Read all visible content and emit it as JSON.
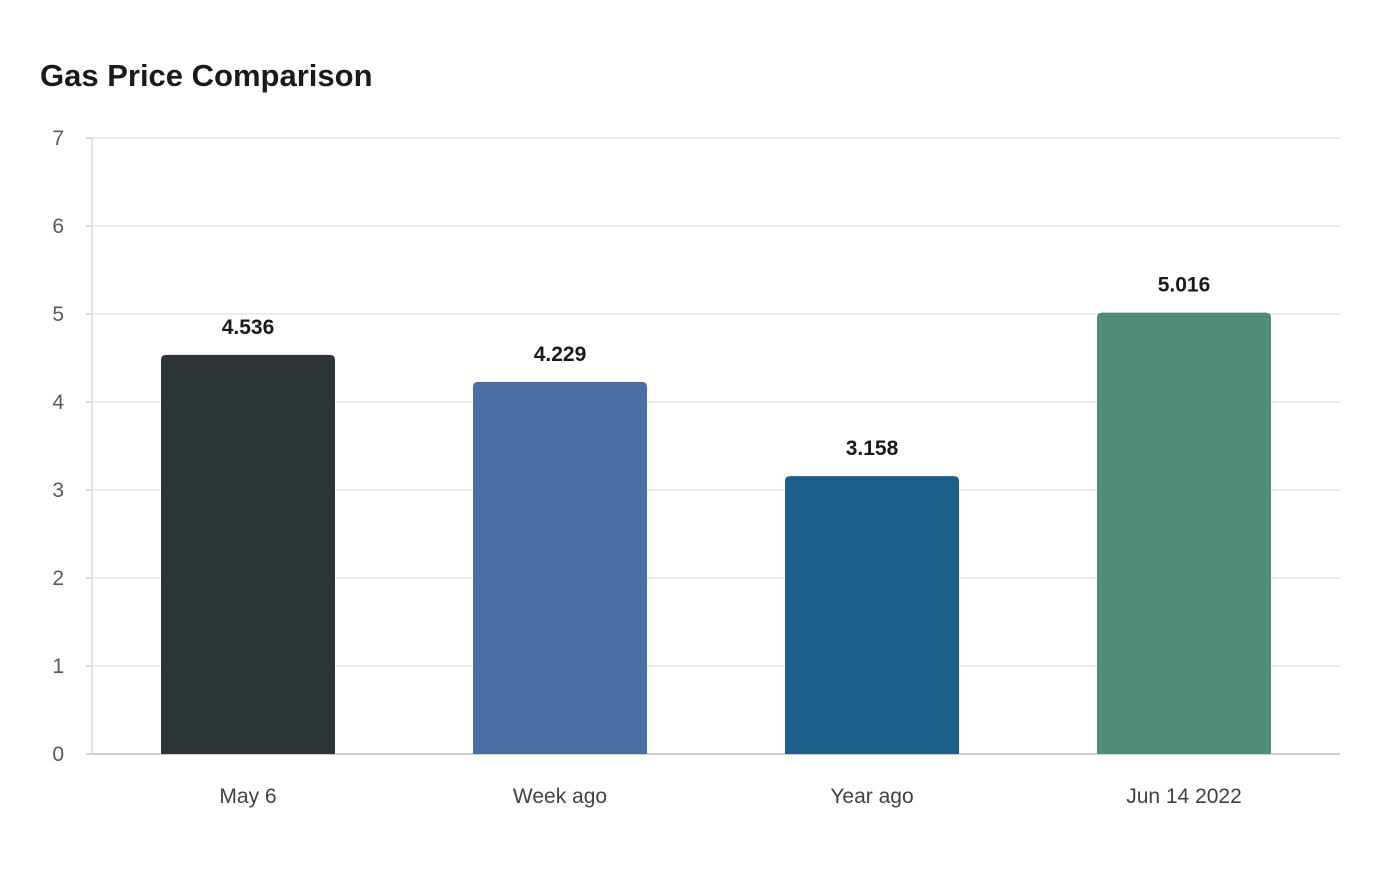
{
  "chart_data": {
    "type": "bar",
    "title": "Gas Price Comparison",
    "xlabel": "",
    "ylabel": "",
    "categories": [
      "May 6",
      "Week ago",
      "Year ago",
      "Jun 14 2022"
    ],
    "values": [
      4.536,
      4.229,
      3.158,
      5.016
    ],
    "value_labels": [
      "4.536",
      "4.229",
      "3.158",
      "5.016"
    ],
    "bar_colors": [
      "#2e3538",
      "#4a6ea3",
      "#1a6089",
      "#4f8c7a"
    ],
    "ylim": [
      0,
      7
    ],
    "yticks": [
      0,
      1,
      2,
      3,
      4,
      5,
      6,
      7
    ],
    "grid": true,
    "legend": "none"
  }
}
